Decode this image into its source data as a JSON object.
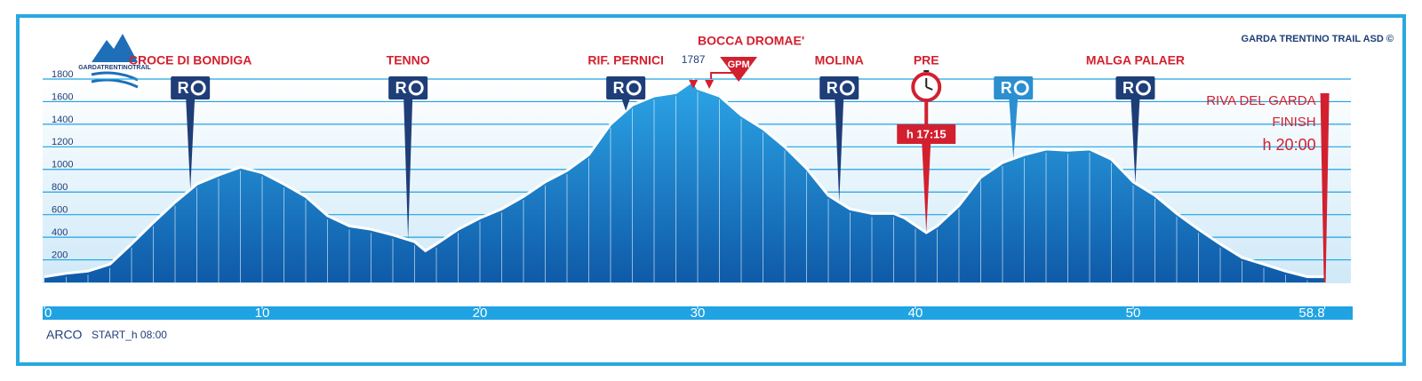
{
  "chart_data": {
    "type": "area",
    "credit": "GARDA TRENTINO TRAIL ASD ©",
    "logo": "GARDATRENTINOTRAIL",
    "color": "#1a8fd6",
    "line_color": "#ffffff",
    "grid": true,
    "xlim": [
      0,
      58.8
    ],
    "ylim": [
      0,
      1800
    ],
    "xticks": [
      0,
      10,
      20,
      30,
      40,
      50,
      58.8
    ],
    "yticks": [
      200,
      400,
      600,
      800,
      1000,
      1200,
      1400,
      1600,
      1800
    ],
    "x": [
      0,
      1,
      2,
      3,
      4,
      5,
      6,
      7,
      8,
      9,
      10,
      11,
      12,
      13,
      14,
      15,
      16,
      17,
      17.5,
      18,
      19,
      20,
      21,
      22,
      23,
      24,
      25,
      26,
      27,
      28,
      29,
      29.8,
      30,
      31,
      32,
      33,
      34,
      35,
      36,
      37,
      38,
      39,
      39.5,
      40.5,
      41,
      42,
      43,
      44,
      45,
      46,
      47,
      48,
      49,
      50,
      51,
      52,
      53,
      54,
      55,
      56,
      57,
      58,
      58.8
    ],
    "values": [
      50,
      80,
      100,
      160,
      340,
      530,
      710,
      870,
      950,
      1020,
      970,
      870,
      760,
      590,
      500,
      470,
      420,
      360,
      280,
      340,
      470,
      570,
      650,
      760,
      890,
      990,
      1130,
      1400,
      1570,
      1650,
      1680,
      1787,
      1717,
      1650,
      1480,
      1360,
      1200,
      1010,
      770,
      650,
      610,
      610,
      570,
      440,
      500,
      680,
      930,
      1060,
      1130,
      1180,
      1170,
      1180,
      1090,
      890,
      770,
      610,
      470,
      340,
      220,
      160,
      100,
      50,
      50
    ],
    "refreshment_label": "R",
    "waypoints": [
      {
        "name": "CROCE DI BONDIGA",
        "x": 6.7,
        "color": "#1f3e78"
      },
      {
        "name": "TENNO",
        "x": 16.7,
        "color": "#1f3e78"
      },
      {
        "name": "RIF. PERNICI",
        "x": 26.7,
        "color": "#1f3e78"
      },
      {
        "name": "MOLINA",
        "x": 36.5,
        "color": "#1f3e78"
      },
      {
        "name": null,
        "x": 44.5,
        "color": "#2b8fd0"
      },
      {
        "name": "MALGA PALAER",
        "x": 50.1,
        "color": "#1f3e78"
      }
    ],
    "peak": {
      "x": 29.8,
      "value": 1787,
      "name": "BOCCA DROMAE'",
      "badge": "GPM"
    },
    "cutoff": {
      "name": "PRE",
      "x": 40.5,
      "label": "h 17:15"
    },
    "finish": {
      "x": 58.8,
      "lines": [
        "RIVA DEL GARDA",
        "FINISH",
        "h 20:00"
      ]
    },
    "start": {
      "name": "ARCO",
      "label": "START_h 08:00"
    }
  }
}
